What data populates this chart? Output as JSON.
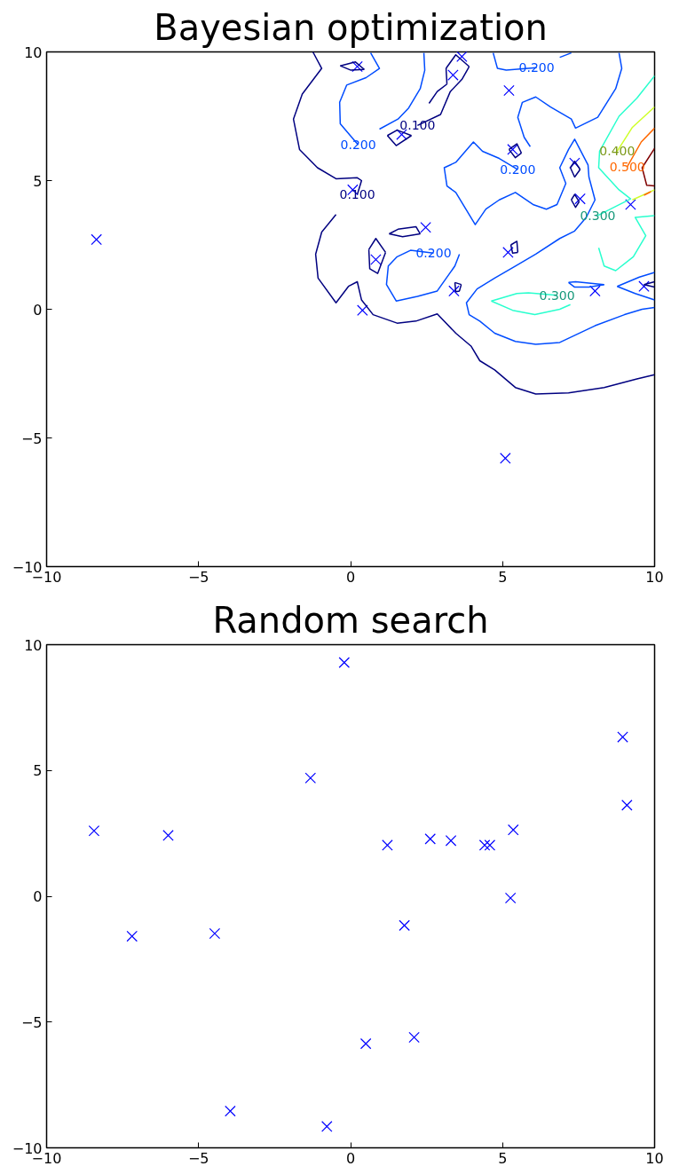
{
  "chart_data": [
    {
      "type": "line",
      "title": "Bayesian optimization",
      "xlim": [
        -10,
        10
      ],
      "ylim": [
        -10,
        10
      ],
      "xticks": [
        -10,
        -5,
        0,
        5,
        10
      ],
      "yticks": [
        -10,
        -5,
        0,
        5,
        10
      ],
      "series": [
        {
          "color": "#000080",
          "x": [
            -1.24,
            -0.95,
            -1.59,
            -1.88,
            -1.68,
            -1.09,
            -0.48,
            0.22,
            0.36,
            0.22
          ],
          "values": [
            10,
            9.36,
            8.36,
            7.39,
            6.21,
            5.5,
            5.07,
            5.11,
            5.0,
            4.46
          ]
        },
        {
          "color": "#000080",
          "x": [
            -0.48,
            -0.95,
            -1.15,
            -1.07,
            -0.48,
            -0.07,
            0.22,
            0.36,
            0.74,
            1.53,
            2.15,
            2.85,
            3.46,
            3.96,
            4.25,
            4.74,
            5.42,
            6.09,
            7.17,
            8.34,
            9.42,
            10
          ],
          "values": [
            3.68,
            3.0,
            2.14,
            1.21,
            0.25,
            0.89,
            1.07,
            0.36,
            -0.21,
            -0.54,
            -0.46,
            -0.18,
            -0.93,
            -1.43,
            -2.0,
            -2.36,
            -3.04,
            -3.29,
            -3.25,
            -3.04,
            -2.71,
            -2.54
          ]
        },
        {
          "color": "#000080",
          "x": [
            -0.34,
            0.16,
            0.45
          ],
          "values": [
            9.46,
            9.61,
            9.32
          ]
        },
        {
          "color": "#000080",
          "x": [
            -0.34,
            0.01,
            0.45
          ],
          "values": [
            9.46,
            9.29,
            9.32
          ]
        },
        {
          "color": "#000080",
          "x": [
            2.58,
            2.85,
            3.17
          ],
          "values": [
            8.0,
            8.46,
            8.75
          ]
        },
        {
          "color": "#000080",
          "x": [
            3.14,
            3.17
          ],
          "values": [
            9.36,
            8.75
          ]
        },
        {
          "color": "#000080",
          "x": [
            3.14,
            3.46,
            3.9
          ],
          "values": [
            9.36,
            9.89,
            9.43
          ]
        },
        {
          "color": "#000080",
          "x": [
            2.2,
            2.96,
            3.28,
            3.66,
            3.9
          ],
          "values": [
            7.14,
            7.57,
            8.46,
            8.93,
            9.43
          ]
        },
        {
          "color": "#000080",
          "x": [
            1.21,
            1.53,
            2.0
          ],
          "values": [
            6.75,
            6.96,
            6.75
          ]
        },
        {
          "color": "#000080",
          "x": [
            1.21,
            1.5,
            2.0
          ],
          "values": [
            6.75,
            6.36,
            6.75
          ]
        },
        {
          "color": "#000080",
          "x": [
            1.27,
            1.56,
            2.15,
            2.29
          ],
          "values": [
            2.93,
            3.11,
            3.21,
            2.93
          ]
        },
        {
          "color": "#000080",
          "x": [
            1.27,
            1.71,
            2.29
          ],
          "values": [
            2.93,
            2.82,
            2.93
          ]
        },
        {
          "color": "#000080",
          "x": [
            0.6,
            0.83,
            1.15
          ],
          "values": [
            2.32,
            2.75,
            2.21
          ]
        },
        {
          "color": "#000080",
          "x": [
            0.6,
            0.63,
            0.89,
            1.15
          ],
          "values": [
            2.32,
            1.57,
            1.39,
            2.21
          ]
        },
        {
          "color": "#000080",
          "x": [
            3.43,
            3.64
          ],
          "values": [
            1.04,
            0.96
          ]
        },
        {
          "color": "#000080",
          "x": [
            3.43,
            3.46,
            3.58,
            3.64
          ],
          "values": [
            1.04,
            0.68,
            0.71,
            0.96
          ]
        },
        {
          "color": "#000080",
          "x": [
            5.21,
            5.47,
            5.62
          ],
          "values": [
            6.21,
            6.43,
            6.07
          ]
        },
        {
          "color": "#000080",
          "x": [
            5.21,
            5.42,
            5.62
          ],
          "values": [
            6.21,
            5.89,
            6.07
          ]
        },
        {
          "color": "#000080",
          "x": [
            7.23,
            7.37,
            7.55
          ],
          "values": [
            5.5,
            5.75,
            5.43
          ]
        },
        {
          "color": "#000080",
          "x": [
            7.23,
            7.37,
            7.55
          ],
          "values": [
            5.5,
            5.14,
            5.43
          ]
        },
        {
          "color": "#000080",
          "x": [
            7.26,
            7.37,
            7.52
          ],
          "values": [
            4.25,
            4.46,
            4.18
          ]
        },
        {
          "color": "#000080",
          "x": [
            7.26,
            7.4,
            7.52
          ],
          "values": [
            4.25,
            3.96,
            4.18
          ]
        },
        {
          "color": "#000080",
          "x": [
            5.27,
            5.47,
            5.5
          ],
          "values": [
            2.5,
            2.64,
            2.21
          ]
        },
        {
          "color": "#000080",
          "x": [
            5.27,
            5.33,
            5.5
          ],
          "values": [
            2.5,
            2.18,
            2.21
          ]
        },
        {
          "color": "#000080",
          "x": [
            9.65,
            10
          ],
          "values": [
            0.96,
            1.07
          ]
        },
        {
          "color": "#000080",
          "x": [
            9.65,
            10
          ],
          "values": [
            0.96,
            0.86
          ]
        },
        {
          "color": "#004cff",
          "x": [
            0.66,
            0.95,
            0.51,
            -0.13,
            -0.36,
            -0.34,
            0.25
          ],
          "values": [
            9.96,
            9.36,
            9.0,
            8.71,
            8.04,
            7.21,
            6.39
          ]
        },
        {
          "color": "#004cff",
          "x": [
            2.41,
            2.44,
            2.29,
            1.91,
            1.56,
            0.95
          ],
          "values": [
            9.96,
            9.29,
            8.57,
            7.82,
            7.39,
            7.0
          ]
        },
        {
          "color": "#004cff",
          "x": [
            4.69,
            4.83,
            5.12,
            6.12
          ],
          "values": [
            9.96,
            9.36,
            9.29,
            9.39
          ]
        },
        {
          "color": "#004cff",
          "x": [
            6.88,
            7.26
          ],
          "values": [
            9.79,
            9.96
          ]
        },
        {
          "color": "#004cff",
          "x": [
            8.83,
            8.92,
            8.72,
            8.13,
            7.4,
            7.26,
            6.58,
            6.09,
            5.65,
            5.5,
            5.71,
            5.91
          ],
          "values": [
            9.96,
            9.36,
            8.57,
            7.46,
            7.04,
            7.39,
            7.86,
            8.25,
            8.04,
            7.46,
            6.68,
            6.32
          ]
        },
        {
          "color": "#004cff",
          "x": [
            5.5,
            4.89,
            4.34,
            4.04,
            3.46,
            3.08,
            3.17,
            3.46,
            4.1,
            4.45,
            4.89,
            5.42,
            6.0,
            6.44,
            6.79,
            7.08,
            6.88,
            7.17,
            7.37,
            7.81,
            7.84,
            8.04,
            7.75,
            7.37,
            6.88,
            6.09,
            5.42,
            4.74,
            4.16,
            3.81,
            3.9,
            4.25,
            4.74,
            5.42,
            6.09,
            6.88,
            8.04,
            9.01,
            9.59,
            10
          ],
          "values": [
            5.43,
            5.86,
            6.14,
            6.5,
            5.71,
            5.5,
            4.79,
            4.54,
            3.29,
            3.89,
            4.25,
            4.54,
            4.07,
            3.89,
            4.07,
            4.89,
            5.5,
            6.21,
            6.61,
            5.61,
            5.14,
            4.25,
            3.57,
            3.04,
            2.75,
            2.14,
            1.68,
            1.21,
            0.79,
            0.25,
            -0.21,
            -0.46,
            -0.93,
            -1.25,
            -1.36,
            -1.29,
            -0.64,
            -0.21,
            0,
            0.07
          ]
        },
        {
          "color": "#004cff",
          "x": [
            8.77,
            9.5,
            10
          ],
          "values": [
            0.89,
            1.25,
            1.43
          ]
        },
        {
          "color": "#004cff",
          "x": [
            8.77,
            9.36,
            10
          ],
          "values": [
            0.89,
            0.61,
            0.36
          ]
        },
        {
          "color": "#004cff",
          "x": [
            7.17,
            7.4,
            8.34
          ],
          "values": [
            1.04,
            1.07,
            0.96
          ]
        },
        {
          "color": "#004cff",
          "x": [
            7.17,
            7.37,
            7.84,
            8.34
          ],
          "values": [
            1.04,
            0.86,
            0.86,
            0.96
          ]
        },
        {
          "color": "#004cff",
          "x": [
            2.73,
            1.97,
            1.53,
            1.24,
            1.18,
            1.5,
            2.2,
            2.85,
            3.43,
            3.58
          ],
          "values": [
            2.18,
            2.29,
            2.04,
            1.68,
            0.96,
            0.32,
            0.5,
            0.71,
            1.68,
            2.14
          ]
        },
        {
          "color": "#29ffce",
          "x": [
            10,
            9.42,
            8.83,
            8.19,
            8.16,
            8.83,
            9.21,
            8.13
          ],
          "values": [
            9.07,
            8.21,
            7.5,
            6.14,
            5.5,
            4.64,
            4.29,
            3.64
          ]
        },
        {
          "color": "#29ffce",
          "x": [
            10,
            9.36,
            9.71,
            9.3,
            8.72,
            8.34,
            8.16
          ],
          "values": [
            3.64,
            3.57,
            2.86,
            2.04,
            1.5,
            1.68,
            2.39
          ]
        },
        {
          "color": "#29ffce",
          "x": [
            4.63,
            5.47,
            5.85,
            6.79
          ],
          "values": [
            0.32,
            0.61,
            0.64,
            0.54
          ]
        },
        {
          "color": "#29ffce",
          "x": [
            7.23,
            6.88,
            6.06,
            5.33,
            4.63
          ],
          "values": [
            0.18,
            0,
            -0.21,
            -0.04,
            0.32
          ]
        },
        {
          "color": "#ceff29",
          "x": [
            8.77,
            9.27,
            10
          ],
          "values": [
            6.14,
            7.07,
            7.86
          ]
        },
        {
          "color": "#ceff29",
          "x": [
            9.27,
            10
          ],
          "values": [
            4.25,
            4.64
          ]
        },
        {
          "color": "#ff6800",
          "x": [
            9.1,
            9.56,
            10
          ],
          "values": [
            5.54,
            6.5,
            7.04
          ]
        },
        {
          "color": "#ff6800",
          "x": [
            9.65,
            9.88
          ],
          "values": [
            4.43,
            4.57
          ]
        },
        {
          "color": "#800000",
          "x": [
            10,
            9.59,
            9.74,
            10
          ],
          "values": [
            6.25,
            5.5,
            4.82,
            4.79
          ]
        },
        {
          "type": "scatter",
          "marker": "cross",
          "color": "#0000ff",
          "x": [
            -8.36,
            0.39,
            0.22,
            0.07,
            1.68,
            3.37,
            3.66,
            2.47,
            0.83,
            3.4,
            5.21,
            5.33,
            7.37,
            7.55,
            5.18,
            9.21,
            8.04,
            9.65,
            5.09
          ],
          "values": [
            2.71,
            -0.04,
            9.43,
            4.64,
            6.79,
            9.1,
            9.82,
            3.18,
            1.93,
            0.71,
            8.5,
            6.21,
            5.68,
            4.29,
            2.21,
            4.07,
            0.71,
            0.89,
            -5.79
          ]
        }
      ],
      "annotations": [
        {
          "text": "0.100",
          "x": 2.2,
          "y": 7.14
        },
        {
          "text": "0.100",
          "x": 0.22,
          "y": 4.46
        },
        {
          "text": "0.200",
          "x": 0.25,
          "y": 6.39
        },
        {
          "text": "0.200",
          "x": 6.12,
          "y": 9.39
        },
        {
          "text": "0.200",
          "x": 5.5,
          "y": 5.43
        },
        {
          "text": "0.200",
          "x": 2.73,
          "y": 2.18
        },
        {
          "text": "0.300",
          "x": 8.13,
          "y": 3.64
        },
        {
          "text": "0.300",
          "x": 6.79,
          "y": 0.54
        },
        {
          "text": "0.400",
          "x": 8.77,
          "y": 6.14
        },
        {
          "text": "0.500",
          "x": 9.1,
          "y": 5.54
        }
      ]
    },
    {
      "type": "scatter",
      "title": "Random search",
      "xlim": [
        -10,
        10
      ],
      "ylim": [
        -10,
        10
      ],
      "xticks": [
        -10,
        -5,
        0,
        5,
        10
      ],
      "yticks": [
        -10,
        -5,
        0,
        5,
        10
      ],
      "marker": "cross",
      "series": [
        {
          "color": "#0000ff",
          "x": [
            -8.44,
            -7.19,
            -6.0,
            -4.47,
            -3.96,
            -1.32,
            -0.78,
            -0.21,
            0.5,
            1.21,
            1.77,
            2.09,
            2.62,
            3.3,
            4.41,
            4.58,
            5.35,
            5.26,
            8.95,
            9.09
          ],
          "values": [
            2.6,
            -1.59,
            2.42,
            -1.48,
            -8.54,
            4.7,
            -9.15,
            9.29,
            -5.86,
            2.03,
            -1.16,
            -5.61,
            2.28,
            2.21,
            2.03,
            2.03,
            2.64,
            -0.07,
            6.33,
            3.62
          ]
        }
      ]
    }
  ]
}
